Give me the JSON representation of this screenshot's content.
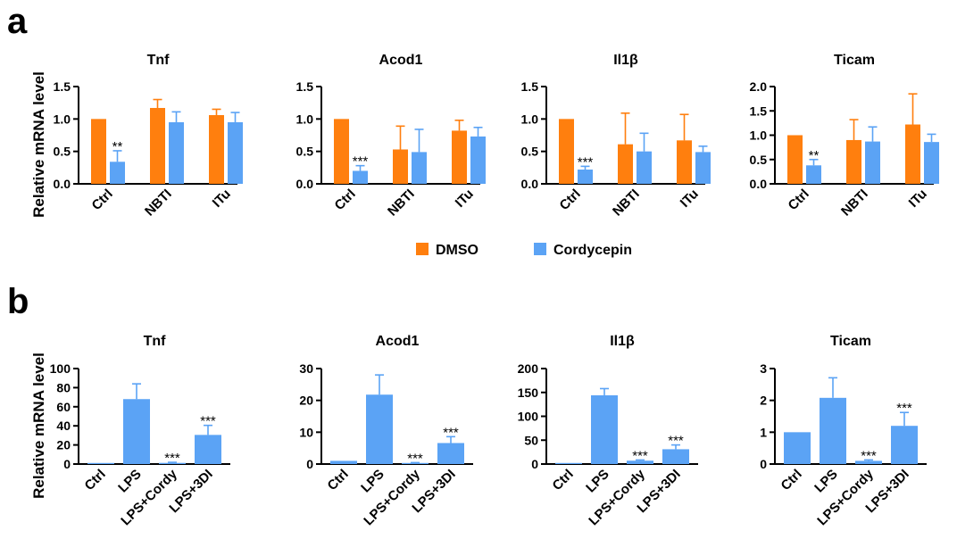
{
  "panels": {
    "a": {
      "letter": "a",
      "ylabel": "Relative mRNA level"
    },
    "b": {
      "letter": "b",
      "ylabel": "Relative mRNA level"
    }
  },
  "legend": {
    "entries": [
      {
        "label": "DMSO",
        "color": "#FF7F0E"
      },
      {
        "label": "Cordycepin",
        "color": "#5BA3F5"
      }
    ]
  },
  "colors": {
    "dmso": "#FF7F0E",
    "cordycepin": "#5BA3F5",
    "axis": "#000000"
  },
  "chart_data": [
    {
      "panel": "a",
      "type": "bar",
      "title": "Tnf",
      "categories": [
        "Ctrl",
        "NBTI",
        "ITu"
      ],
      "ylim": [
        0,
        1.5
      ],
      "yticks": [
        "0.0",
        "0.5",
        "1.0",
        "1.5"
      ],
      "grid": false,
      "series": [
        {
          "name": "DMSO",
          "color": "#FF7F0E",
          "values": [
            1.0,
            1.17,
            1.06
          ],
          "errors": [
            0.0,
            0.13,
            0.09
          ],
          "sig": [
            "",
            "",
            ""
          ]
        },
        {
          "name": "Cordycepin",
          "color": "#5BA3F5",
          "values": [
            0.34,
            0.95,
            0.95
          ],
          "errors": [
            0.17,
            0.16,
            0.15
          ],
          "sig": [
            "**",
            "",
            ""
          ]
        }
      ]
    },
    {
      "panel": "a",
      "type": "bar",
      "title": "Acod1",
      "categories": [
        "Ctrl",
        "NBTI",
        "ITu"
      ],
      "ylim": [
        0,
        1.5
      ],
      "yticks": [
        "0.0",
        "0.5",
        "1.0",
        "1.5"
      ],
      "grid": false,
      "series": [
        {
          "name": "DMSO",
          "color": "#FF7F0E",
          "values": [
            1.0,
            0.53,
            0.82
          ],
          "errors": [
            0.0,
            0.36,
            0.16
          ],
          "sig": [
            "",
            "",
            ""
          ]
        },
        {
          "name": "Cordycepin",
          "color": "#5BA3F5",
          "values": [
            0.2,
            0.49,
            0.73
          ],
          "errors": [
            0.08,
            0.35,
            0.14
          ],
          "sig": [
            "***",
            "",
            ""
          ]
        }
      ]
    },
    {
      "panel": "a",
      "type": "bar",
      "title": "Il1β",
      "categories": [
        "Ctrl",
        "NBTI",
        "ITu"
      ],
      "ylim": [
        0,
        1.5
      ],
      "yticks": [
        "0.0",
        "0.5",
        "1.0",
        "1.5"
      ],
      "grid": false,
      "series": [
        {
          "name": "DMSO",
          "color": "#FF7F0E",
          "values": [
            1.0,
            0.61,
            0.67
          ],
          "errors": [
            0.0,
            0.48,
            0.4
          ],
          "sig": [
            "",
            "",
            ""
          ]
        },
        {
          "name": "Cordycepin",
          "color": "#5BA3F5",
          "values": [
            0.22,
            0.5,
            0.49
          ],
          "errors": [
            0.05,
            0.28,
            0.09
          ],
          "sig": [
            "***",
            "",
            ""
          ]
        }
      ]
    },
    {
      "panel": "a",
      "type": "bar",
      "title": "Ticam",
      "categories": [
        "Ctrl",
        "NBTI",
        "ITu"
      ],
      "ylim": [
        0,
        2.0
      ],
      "yticks": [
        "0.0",
        "0.5",
        "1.0",
        "1.5",
        "2.0"
      ],
      "grid": false,
      "series": [
        {
          "name": "DMSO",
          "color": "#FF7F0E",
          "values": [
            1.0,
            0.9,
            1.22
          ],
          "errors": [
            0.0,
            0.42,
            0.63
          ],
          "sig": [
            "",
            "",
            ""
          ]
        },
        {
          "name": "Cordycepin",
          "color": "#5BA3F5",
          "values": [
            0.38,
            0.87,
            0.86
          ],
          "errors": [
            0.12,
            0.3,
            0.16
          ],
          "sig": [
            "**",
            "",
            ""
          ]
        }
      ]
    },
    {
      "panel": "b",
      "type": "bar",
      "title": "Tnf",
      "categories": [
        "Ctrl",
        "LPS",
        "LPS+Cordy",
        "LPS+3DI"
      ],
      "ylim": [
        0,
        100
      ],
      "yticks": [
        "0",
        "20",
        "40",
        "60",
        "80",
        "100"
      ],
      "grid": false,
      "series": [
        {
          "name": "",
          "color": "#5BA3F5",
          "values": [
            0.3,
            68,
            1.2,
            30.5
          ],
          "errors": [
            0,
            16,
            0.6,
            10
          ],
          "sig": [
            "",
            "",
            "***",
            "***"
          ]
        }
      ]
    },
    {
      "panel": "b",
      "type": "bar",
      "title": "Acod1",
      "categories": [
        "Ctrl",
        "LPS",
        "LPS+Cordy",
        "LPS+3DI"
      ],
      "ylim": [
        0,
        30
      ],
      "yticks": [
        "0",
        "10",
        "20",
        "30"
      ],
      "grid": false,
      "series": [
        {
          "name": "",
          "color": "#5BA3F5",
          "values": [
            1.0,
            21.8,
            0.3,
            6.6
          ],
          "errors": [
            0,
            6.2,
            0.15,
            2.0
          ],
          "sig": [
            "",
            "",
            "***",
            "***"
          ]
        }
      ]
    },
    {
      "panel": "b",
      "type": "bar",
      "title": "Il1β",
      "categories": [
        "Ctrl",
        "LPS",
        "LPS+Cordy",
        "LPS+3DI"
      ],
      "ylim": [
        0,
        200
      ],
      "yticks": [
        "0",
        "50",
        "100",
        "150",
        "200"
      ],
      "grid": false,
      "series": [
        {
          "name": "",
          "color": "#5BA3F5",
          "values": [
            0.5,
            144,
            7,
            31
          ],
          "errors": [
            0,
            14,
            1.5,
            9
          ],
          "sig": [
            "",
            "",
            "***",
            "***"
          ]
        }
      ]
    },
    {
      "panel": "b",
      "type": "bar",
      "title": "Ticam",
      "categories": [
        "Ctrl",
        "LPS",
        "LPS+Cordy",
        "LPS+3DI"
      ],
      "ylim": [
        0,
        3
      ],
      "yticks": [
        "0",
        "1",
        "2",
        "3"
      ],
      "grid": false,
      "series": [
        {
          "name": "",
          "color": "#5BA3F5",
          "values": [
            1.0,
            2.08,
            0.1,
            1.2
          ],
          "errors": [
            0,
            0.63,
            0.03,
            0.42
          ],
          "sig": [
            "",
            "",
            "***",
            "***"
          ]
        }
      ]
    }
  ]
}
